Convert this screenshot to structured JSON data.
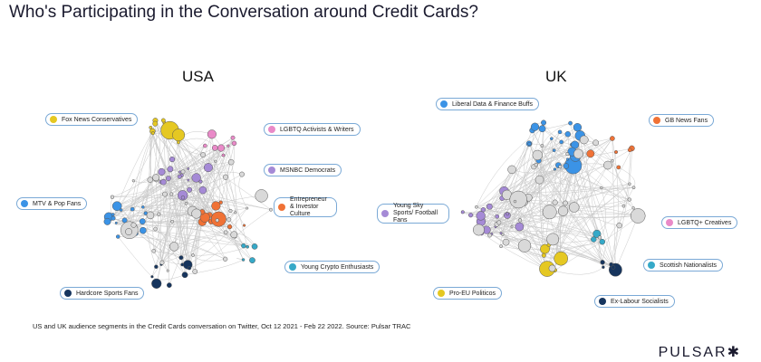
{
  "title": "Who's Participating in the Conversation around Credit Cards?",
  "usa": {
    "title": "USA",
    "legend": [
      {
        "label": "Fox News Conservatives",
        "color": "#e5c822"
      },
      {
        "label": "LGBTQ Activists & Writers",
        "color": "#e98ac8"
      },
      {
        "label": "MSNBC Democrats",
        "color": "#a58ad6"
      },
      {
        "label": "Entrepreneur & Investor Culture",
        "color": "#f07236"
      },
      {
        "label": "MTV & Pop Fans",
        "color": "#3b93e6"
      },
      {
        "label": "Young Crypto Enthusiasts",
        "color": "#36a9c8"
      },
      {
        "label": "Hardcore Sports Fans",
        "color": "#16355e"
      }
    ]
  },
  "uk": {
    "title": "UK",
    "legend": [
      {
        "label": "Liberal Data & Finance Buffs",
        "color": "#3b93e6"
      },
      {
        "label": "GB News Fans",
        "color": "#f07236"
      },
      {
        "label": "Young Sky Sports/ Football Fans",
        "color": "#a58ad6"
      },
      {
        "label": "LGBTQ+ Creatives",
        "color": "#e98ac8"
      },
      {
        "label": "Scottish Nationalists",
        "color": "#36a9c8"
      },
      {
        "label": "Pro-EU Politicos",
        "color": "#e5c822"
      },
      {
        "label": "Ex-Labour Socialists",
        "color": "#16355e"
      }
    ]
  },
  "footnote": "US and UK audience segments in the Credit Cards conversation on Twitter, Oct 12 2021 - Feb 22 2022. Source: Pulsar TRAC",
  "brand": "PULSAR✱"
}
